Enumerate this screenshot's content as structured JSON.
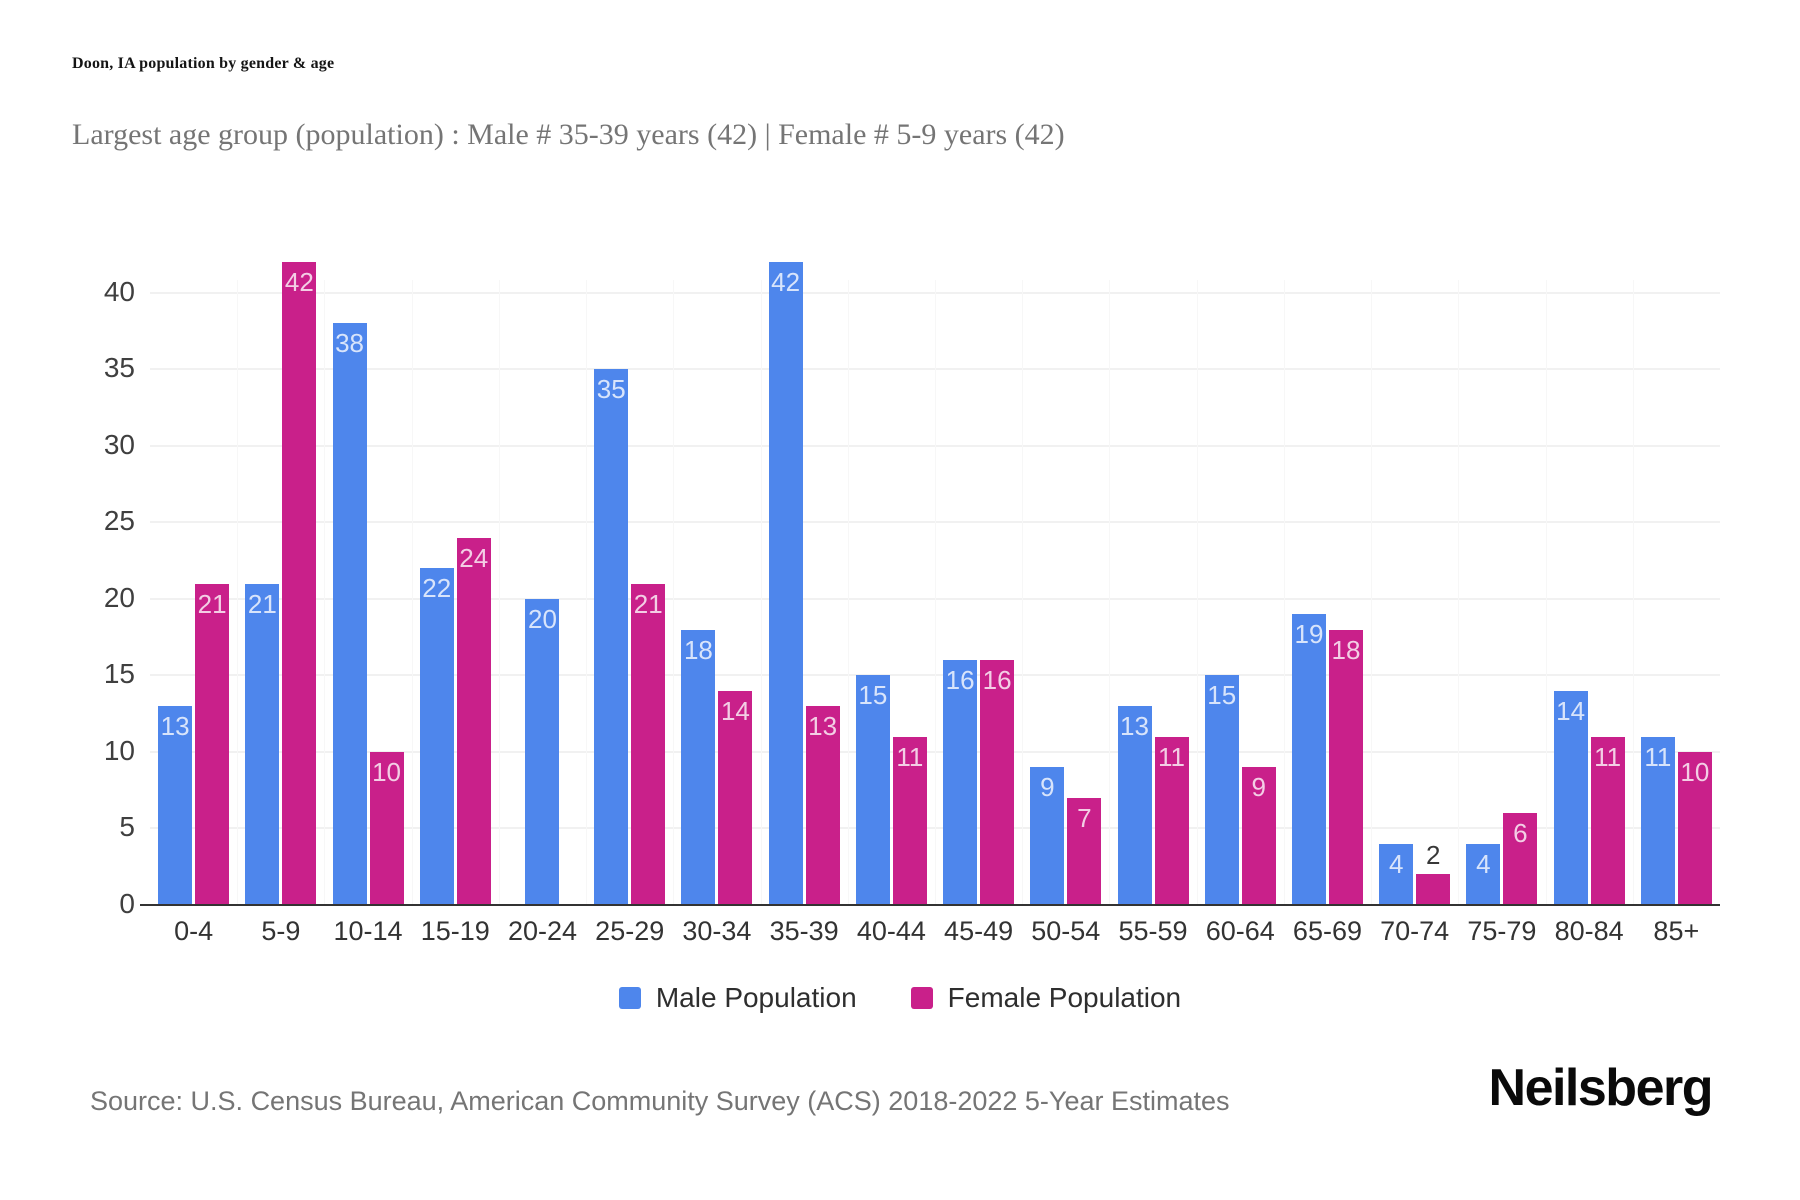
{
  "header": {
    "title": "Doon, IA population by gender & age",
    "subtitle": "Largest age group (population) : Male # 35-39 years (42) | Female # 5-9 years (42)"
  },
  "footer": {
    "source": "Source: U.S. Census Bureau, American Community Survey (ACS) 2018-2022 5-Year Estimates",
    "brand": "Neilsberg"
  },
  "colors": {
    "male": "#4E86EC",
    "female": "#C9208A",
    "axis_line": "#333333",
    "gridline": "#f1f1f1",
    "bar_label_light": "rgba(255,255,255,0.78)",
    "bar_label_dark": "#383838"
  },
  "chart_data": {
    "type": "bar",
    "title": "Doon, IA population by gender & age",
    "categories": [
      "0-4",
      "5-9",
      "10-14",
      "15-19",
      "20-24",
      "25-29",
      "30-34",
      "35-39",
      "40-44",
      "45-49",
      "50-54",
      "55-59",
      "60-64",
      "65-69",
      "70-74",
      "75-79",
      "80-84",
      "85+"
    ],
    "series": [
      {
        "name": "Male Population",
        "color": "#4E86EC",
        "values": [
          13,
          21,
          38,
          22,
          20,
          35,
          18,
          42,
          15,
          16,
          9,
          13,
          15,
          19,
          4,
          4,
          14,
          11
        ]
      },
      {
        "name": "Female Population",
        "color": "#C9208A",
        "values": [
          21,
          42,
          10,
          24,
          0,
          21,
          14,
          13,
          11,
          16,
          7,
          11,
          9,
          18,
          2,
          6,
          11,
          10
        ]
      }
    ],
    "xlabel": "",
    "ylabel": "",
    "yticks": [
      0,
      5,
      10,
      15,
      20,
      25,
      30,
      35,
      40
    ],
    "ylim": [
      0,
      42.8
    ],
    "grid": true,
    "legend_position": "bottom",
    "value_labels": "inside-top, dark above bar when value < 3, hidden when 0"
  }
}
